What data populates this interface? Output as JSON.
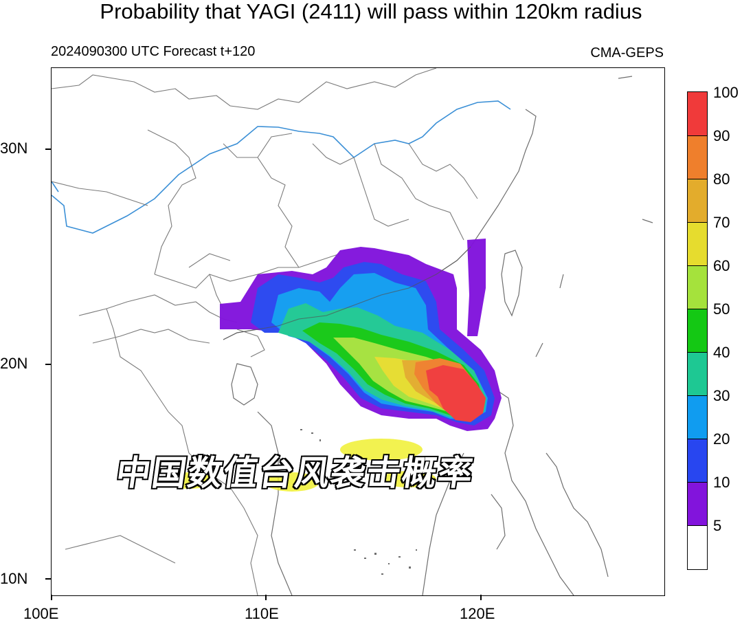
{
  "title": "Probability that YAGI (2411) will pass within 120km radius",
  "forecast_label": "2024090300 UTC Forecast t+120",
  "source": "CMA-GEPS",
  "overlay_text": "中国数值台风袭击概率",
  "axes": {
    "lat_labels": [
      "30N",
      "20N",
      "10N"
    ],
    "lon_labels": [
      "100E",
      "110E",
      "120E"
    ]
  },
  "colorbar": {
    "labels": [
      "100",
      "90",
      "80",
      "70",
      "60",
      "50",
      "40",
      "30",
      "20",
      "10",
      "5"
    ],
    "colors": [
      "#f03a3a",
      "#ef7f2c",
      "#e3ac2c",
      "#e6dc2e",
      "#a5e23c",
      "#14c814",
      "#1ec893",
      "#109cf0",
      "#2846f0",
      "#8214dc",
      "#ffffff"
    ]
  },
  "colors": {
    "coastline": "#6e6e6e",
    "river": "#3a8fd6",
    "overlay_glow": "#f0f032"
  }
}
